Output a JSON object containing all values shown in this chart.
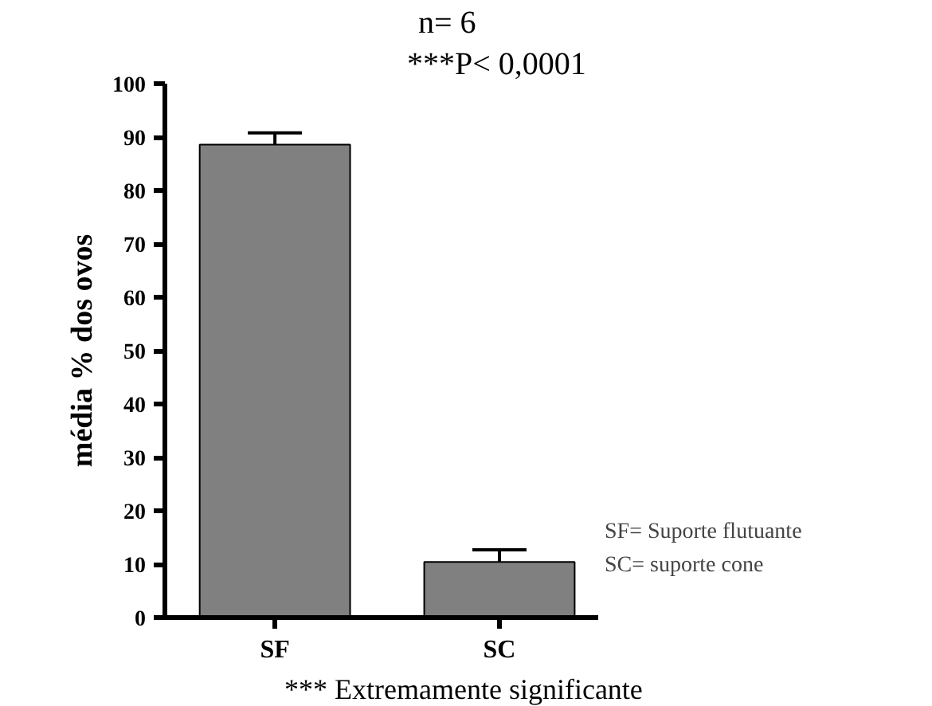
{
  "chart_data": {
    "type": "bar",
    "title": "n= 6",
    "ylabel": "média % dos ovos",
    "categories": [
      "SF",
      "SC"
    ],
    "values": [
      88.6,
      10.4
    ],
    "errors": [
      2.2,
      2.3
    ],
    "color": "#808080",
    "ylim": [
      0,
      100
    ],
    "yticks": [
      0,
      10,
      20,
      30,
      40,
      50,
      60,
      70,
      80,
      90,
      100
    ],
    "grid": false,
    "annotations": [
      "***P< 0,0001",
      "SF= Suporte flutuante",
      "SC= suporte cone",
      "*** Extremamente significante"
    ]
  }
}
